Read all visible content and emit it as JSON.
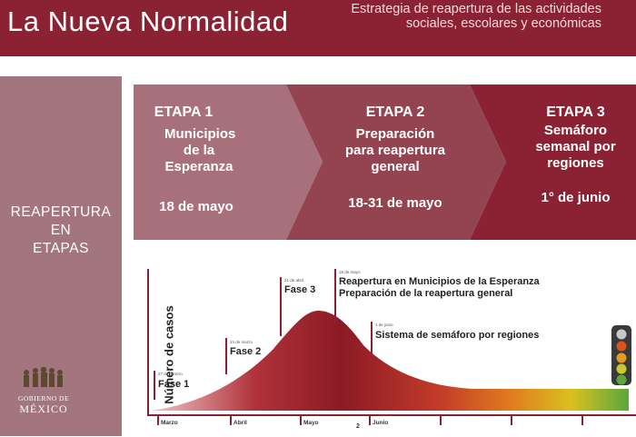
{
  "header": {
    "title": "La Nueva Normalidad",
    "subtitle": "Estrategia de reapertura de las actividades sociales, escolares y económicas"
  },
  "sidebar": {
    "label_line1": "REAPERTURA",
    "label_line2": "EN",
    "label_line3": "ETAPAS"
  },
  "logo": {
    "line1": "GOBIERNO DE",
    "line2": "MÉXICO"
  },
  "stages": [
    {
      "title": "ETAPA 1",
      "name_lines": [
        "Municipios",
        "de la",
        "Esperanza"
      ],
      "date": "18 de mayo",
      "color": "#a8707b"
    },
    {
      "title": "ETAPA 2",
      "name_lines": [
        "Preparación",
        "para reapertura",
        "general"
      ],
      "date": "18-31 de mayo",
      "color": "#944451"
    },
    {
      "title": "ETAPA 3",
      "name_lines": [
        "Semáforo",
        "semanal por",
        "regiones"
      ],
      "date": "1° de junio",
      "color": "#8b2234"
    }
  ],
  "chart_data": {
    "type": "area",
    "ylabel": "Número de casos",
    "x_ticks": [
      "Marzo",
      "Abril",
      "Mayo",
      "Junio"
    ],
    "annotations": [
      {
        "date": "27 de febrero",
        "label": "Fase 1"
      },
      {
        "date": "24 de marzo",
        "label": "Fase 2"
      },
      {
        "date": "21 de abril",
        "label": "Fase 3"
      },
      {
        "date": "18 de mayo",
        "label": "Reapertura en Municipios de la Esperanza",
        "label2": "Preparación de la reapertura general"
      },
      {
        "date": "1 de junio",
        "label": "Sistema de semáforo por regiones"
      }
    ],
    "extra_tick_label": "2"
  },
  "traffic_light": {
    "colors": [
      "#c9c9c9",
      "#d9531e",
      "#e89a1e",
      "#c9c930",
      "#5aa83c"
    ]
  }
}
